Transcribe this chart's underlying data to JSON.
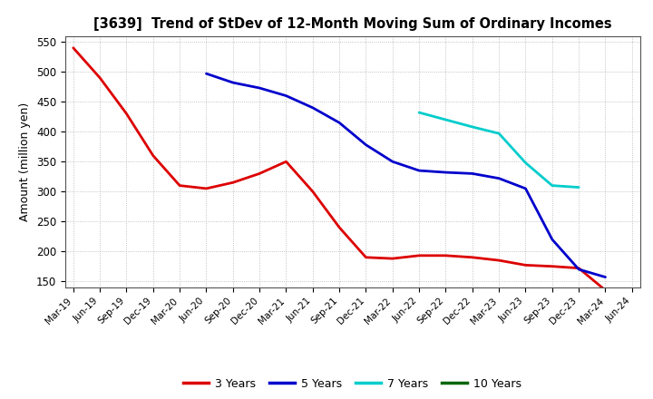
{
  "title": "[3639]  Trend of StDev of 12-Month Moving Sum of Ordinary Incomes",
  "ylabel": "Amount (million yen)",
  "ylim": [
    140,
    560
  ],
  "yticks": [
    150,
    200,
    250,
    300,
    350,
    400,
    450,
    500,
    550
  ],
  "background_color": "#ffffff",
  "grid_color": "#aaaaaa",
  "x_labels": [
    "Mar-19",
    "Jun-19",
    "Sep-19",
    "Dec-19",
    "Mar-20",
    "Jun-20",
    "Sep-20",
    "Dec-20",
    "Mar-21",
    "Jun-21",
    "Sep-21",
    "Dec-21",
    "Mar-22",
    "Jun-22",
    "Sep-22",
    "Dec-22",
    "Mar-23",
    "Jun-23",
    "Sep-23",
    "Dec-23",
    "Mar-24",
    "Jun-24"
  ],
  "series": [
    {
      "name": "3 Years",
      "color": "#dd0000",
      "data": [
        540,
        490,
        430,
        360,
        310,
        305,
        315,
        330,
        350,
        300,
        240,
        190,
        188,
        193,
        193,
        190,
        185,
        177,
        175,
        172,
        135,
        null
      ]
    },
    {
      "name": "5 Years",
      "color": "#0000cc",
      "data": [
        null,
        null,
        null,
        null,
        null,
        497,
        482,
        473,
        460,
        440,
        415,
        378,
        350,
        335,
        332,
        330,
        322,
        305,
        220,
        170,
        157,
        null
      ]
    },
    {
      "name": "7 Years",
      "color": "#00cccc",
      "data": [
        null,
        null,
        null,
        null,
        null,
        null,
        null,
        null,
        null,
        null,
        null,
        null,
        null,
        432,
        420,
        408,
        397,
        348,
        310,
        307,
        null,
        null
      ]
    },
    {
      "name": "10 Years",
      "color": "#006600",
      "data": [
        null,
        null,
        null,
        null,
        null,
        null,
        null,
        null,
        null,
        null,
        null,
        null,
        null,
        null,
        null,
        null,
        null,
        null,
        null,
        null,
        null,
        null
      ]
    }
  ],
  "legend_colors": [
    "#dd0000",
    "#0000cc",
    "#00cccc",
    "#006600"
  ],
  "legend_labels": [
    "3 Years",
    "5 Years",
    "7 Years",
    "10 Years"
  ]
}
